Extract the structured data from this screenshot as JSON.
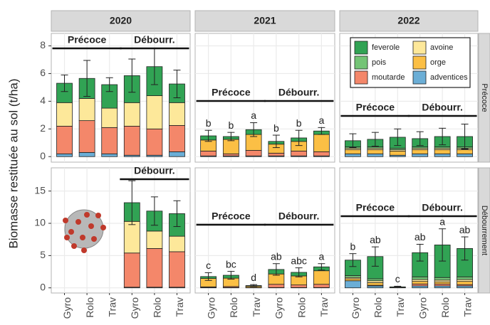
{
  "figure": {
    "y_label": "Biomasse restituée au sol (t/ha)"
  },
  "chart_data": [
    {
      "type": "bar",
      "stacked": true,
      "title": "2020",
      "ylim": [
        -0.4,
        8.9
      ],
      "yticks": [
        0,
        2,
        4,
        6,
        8
      ],
      "grid": true,
      "categories": [
        null,
        null,
        null,
        null,
        null,
        null
      ],
      "groups": [
        "Précoce",
        "Débourr."
      ],
      "series": [
        {
          "color": "#31a354",
          "values": [
            1.4,
            1.45,
            1.7,
            1.95,
            2.1,
            1.35
          ]
        },
        {
          "color": "#74c476",
          "values": [
            0,
            0,
            0,
            0,
            0,
            0
          ]
        },
        {
          "color": "#f4876a",
          "values": [
            2.0,
            2.3,
            1.9,
            2.1,
            1.9,
            1.9
          ]
        },
        {
          "color": "#fde89a",
          "values": [
            1.7,
            1.6,
            1.4,
            1.7,
            2.4,
            1.65
          ]
        },
        {
          "color": "#fbbf45",
          "values": [
            0,
            0,
            0,
            0,
            0,
            0
          ]
        },
        {
          "color": "#6baed6",
          "values": [
            0.2,
            0.3,
            0.2,
            0.1,
            0.1,
            0.35
          ]
        }
      ],
      "errors": [
        0.6,
        1.3,
        0.5,
        1.2,
        1.3,
        1.0
      ]
    },
    {
      "type": "bar",
      "stacked": true,
      "title": "2021",
      "ylim": [
        -0.4,
        8.9
      ],
      "yticks": [
        0,
        2,
        4,
        6,
        8
      ],
      "grid": true,
      "categories": [
        null,
        null,
        null,
        null,
        null,
        null
      ],
      "groups": [
        "Précoce",
        "Débourr."
      ],
      "series": [
        {
          "color": "#31a354",
          "values": [
            0.3,
            0.2,
            0.35,
            0.2,
            0.25,
            0.25
          ]
        },
        {
          "color": "#74c476",
          "values": [
            0,
            0,
            0,
            0,
            0,
            0
          ]
        },
        {
          "color": "#f4876a",
          "values": [
            0.35,
            0.15,
            0.4,
            0.2,
            0.35,
            0.3
          ]
        },
        {
          "color": "#fde89a",
          "values": [
            0,
            0,
            0,
            0,
            0,
            0
          ]
        },
        {
          "color": "#fbbf45",
          "values": [
            0.8,
            1.05,
            1.15,
            0.65,
            0.7,
            1.25
          ]
        },
        {
          "color": "#6baed6",
          "values": [
            0.05,
            0.05,
            0.05,
            0.05,
            0.05,
            0.05
          ]
        }
      ],
      "errors": [
        0.4,
        0.3,
        0.5,
        0.45,
        0.55,
        0.25
      ],
      "letters": [
        "b",
        "b",
        "a",
        "b",
        "b",
        "a"
      ]
    },
    {
      "type": "bar",
      "stacked": true,
      "title": "2022",
      "row_label": "Précoce",
      "ylim": [
        -0.4,
        8.9
      ],
      "yticks": [
        0,
        2,
        4,
        6,
        8
      ],
      "grid": true,
      "categories": [
        null,
        null,
        null,
        null,
        null,
        null
      ],
      "groups": [
        "Précoce",
        "Débourr."
      ],
      "series": [
        {
          "name": "feverole",
          "color": "#31a354",
          "values": [
            0.45,
            0.55,
            0.8,
            0.6,
            0.75,
            0.75
          ]
        },
        {
          "name": "pois",
          "color": "#74c476",
          "values": [
            0.1,
            0.1,
            0.1,
            0.1,
            0.1,
            0.1
          ]
        },
        {
          "name": "moutarde",
          "color": "#f4876a",
          "values": [
            0,
            0,
            0,
            0,
            0,
            0
          ]
        },
        {
          "name": "avoine",
          "color": "#fde89a",
          "values": [
            0.1,
            0.1,
            0.1,
            0.1,
            0.1,
            0.1
          ]
        },
        {
          "name": "orge",
          "color": "#fbbf45",
          "values": [
            0.3,
            0.3,
            0.3,
            0.3,
            0.3,
            0.3
          ]
        },
        {
          "name": "adventices",
          "color": "#6baed6",
          "values": [
            0.2,
            0.2,
            0.1,
            0.2,
            0.2,
            0.2
          ]
        }
      ],
      "errors": [
        0.5,
        0.5,
        0.6,
        0.5,
        0.6,
        0.9
      ]
    },
    {
      "type": "bar",
      "stacked": true,
      "ylim": [
        -0.8,
        18.6
      ],
      "yticks": [
        0,
        5,
        10,
        15
      ],
      "grid": true,
      "categories": [
        "Gyro",
        "Rolo",
        "Trav",
        "Gyro",
        "Rolo",
        "Trav"
      ],
      "groups": [
        null,
        "Débourr."
      ],
      "series": [
        {
          "color": "#31a354",
          "values": [
            null,
            null,
            null,
            2.9,
            3.1,
            3.5
          ]
        },
        {
          "color": "#74c476",
          "values": [
            null,
            null,
            null,
            0,
            0,
            0
          ]
        },
        {
          "color": "#f4876a",
          "values": [
            null,
            null,
            null,
            5.3,
            6.0,
            5.5
          ]
        },
        {
          "color": "#fde89a",
          "values": [
            null,
            null,
            null,
            4.9,
            2.7,
            2.4
          ]
        },
        {
          "color": "#fbbf45",
          "values": [
            null,
            null,
            null,
            0,
            0,
            0
          ]
        },
        {
          "color": "#6baed6",
          "values": [
            null,
            null,
            null,
            0.1,
            0.1,
            0.1
          ]
        }
      ],
      "errors": [
        null,
        null,
        null,
        3.4,
        2.2,
        2.0
      ]
    },
    {
      "type": "bar",
      "stacked": true,
      "ylim": [
        -0.8,
        18.6
      ],
      "yticks": [
        0,
        5,
        10,
        15
      ],
      "grid": true,
      "categories": [
        "Gyro",
        "Rolo",
        "Trav",
        "Gyro",
        "Rolo",
        "Trav"
      ],
      "groups": [
        "Précoce",
        "Débourr."
      ],
      "series": [
        {
          "color": "#31a354",
          "values": [
            0.3,
            0.45,
            0.1,
            0.7,
            0.55,
            0.6
          ]
        },
        {
          "color": "#74c476",
          "values": [
            0,
            0,
            0,
            0,
            0,
            0
          ]
        },
        {
          "color": "#f4876a",
          "values": [
            0.1,
            0.15,
            0.05,
            0.5,
            0.4,
            0.5
          ]
        },
        {
          "color": "#fde89a",
          "values": [
            0,
            0,
            0,
            0,
            0,
            0
          ]
        },
        {
          "color": "#fbbf45",
          "values": [
            1.3,
            1.3,
            0.2,
            1.6,
            1.4,
            2.1
          ]
        },
        {
          "color": "#6baed6",
          "values": [
            0.05,
            0.05,
            0,
            0.05,
            0.05,
            0.05
          ]
        }
      ],
      "errors": [
        0.6,
        0.6,
        0.15,
        0.9,
        0.7,
        0.5
      ],
      "letters": [
        "c",
        "bc",
        "d",
        "ab",
        "abc",
        "a"
      ]
    },
    {
      "type": "bar",
      "stacked": true,
      "row_label": "Débourrement",
      "ylim": [
        -0.8,
        18.6
      ],
      "yticks": [
        0,
        5,
        10,
        15
      ],
      "grid": true,
      "categories": [
        "Gyro",
        "Rolo",
        "Trav",
        "Gyro",
        "Rolo",
        "Trav"
      ],
      "groups": [
        "Précoce",
        "Débourr."
      ],
      "series": [
        {
          "color": "#31a354",
          "values": [
            2.4,
            3.45,
            0.1,
            3.75,
            5.05,
            4.4
          ]
        },
        {
          "color": "#74c476",
          "values": [
            0.3,
            0.3,
            0,
            0.4,
            0.4,
            0.4
          ]
        },
        {
          "color": "#f4876a",
          "values": [
            0,
            0.1,
            0,
            0.3,
            0.3,
            0.2
          ]
        },
        {
          "color": "#fde89a",
          "values": [
            0.2,
            0.3,
            0,
            0.3,
            0.3,
            0.3
          ]
        },
        {
          "color": "#fbbf45",
          "values": [
            0.3,
            0.4,
            0.05,
            0.4,
            0.3,
            0.5
          ]
        },
        {
          "color": "#6baed6",
          "values": [
            1.1,
            0.3,
            0,
            0.3,
            0.3,
            0.3
          ]
        }
      ],
      "errors": [
        1.0,
        1.5,
        0.1,
        1.3,
        2.5,
        1.8
      ],
      "letters": [
        "b",
        "ab",
        "c",
        "ab",
        "a",
        "ab"
      ]
    }
  ]
}
